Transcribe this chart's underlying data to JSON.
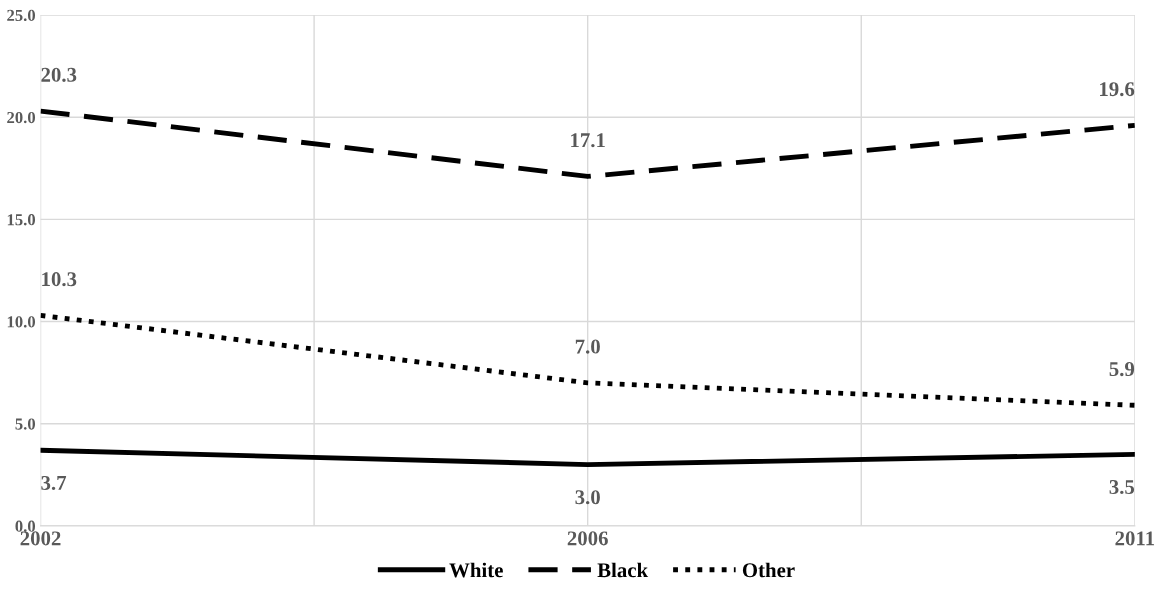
{
  "chart_data": {
    "type": "line",
    "categories": [
      "2002",
      "2006",
      "2011"
    ],
    "series": [
      {
        "name": "White",
        "color": "#000000",
        "values": [
          3.7,
          3.0,
          3.5
        ],
        "value_labels": [
          "3.7",
          "3.0",
          "3.5"
        ],
        "line_style": "solid"
      },
      {
        "name": "Black",
        "color": "#000000",
        "values": [
          20.3,
          17.1,
          19.6
        ],
        "value_labels": [
          "20.3",
          "17.1",
          "19.6"
        ],
        "line_style": "dashed"
      },
      {
        "name": "Other",
        "color": "#000000",
        "values": [
          10.3,
          7.0,
          5.9
        ],
        "value_labels": [
          "10.3",
          "7.0",
          "5.9"
        ],
        "line_style": "dotted"
      }
    ],
    "ylim": [
      0,
      25
    ],
    "yticks": [
      {
        "value": 0,
        "label": "0.0"
      },
      {
        "value": 5,
        "label": "5.0"
      },
      {
        "value": 10,
        "label": "10.0"
      },
      {
        "value": 15,
        "label": "15.0"
      },
      {
        "value": 20,
        "label": "20.0"
      },
      {
        "value": 25,
        "label": "25.0"
      }
    ],
    "grid": true,
    "legend": "bottom",
    "marker": "none"
  }
}
